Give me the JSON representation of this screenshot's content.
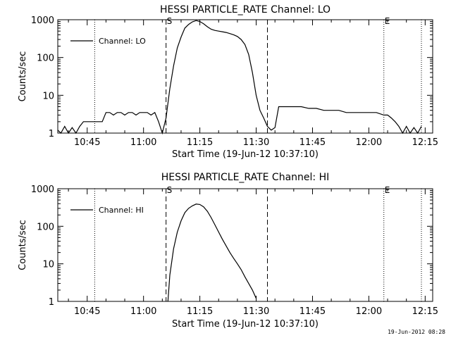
{
  "footer_timestamp": "19-Jun-2012 08:28",
  "chart_data": [
    {
      "type": "line",
      "title": "HESSI PARTICLE_RATE Channel: LO",
      "xlabel": "Start Time (19-Jun-12 10:37:10)",
      "ylabel": "Counts/sec",
      "yscale": "log",
      "ylim": [
        1,
        1000
      ],
      "yticks": [
        1,
        10,
        100,
        1000
      ],
      "ytick_labels": [
        "1",
        "10",
        "100",
        "1000"
      ],
      "xlim": [
        "10:37:10",
        "12:17"
      ],
      "xticks": [
        "10:45",
        "11:00",
        "11:15",
        "11:30",
        "11:45",
        "12:00",
        "12:15"
      ],
      "grid": false,
      "legend": {
        "position": "top-left",
        "entries": [
          "Channel: LO"
        ]
      },
      "markers": [
        {
          "time": "10:47",
          "style": "dotted"
        },
        {
          "time": "11:06",
          "style": "dashed",
          "label": "S"
        },
        {
          "time": "11:33",
          "style": "dashed"
        },
        {
          "time": "12:04",
          "style": "dotted",
          "label": "E"
        },
        {
          "time": "12:14",
          "style": "dotted"
        }
      ],
      "series": [
        {
          "name": "Channel: LO",
          "x": [
            "10:37:10",
            "10:38",
            "10:39",
            "10:40",
            "10:41",
            "10:42",
            "10:43",
            "10:44",
            "10:45",
            "10:46",
            "10:47",
            "10:48",
            "10:49",
            "10:50",
            "10:51",
            "10:52",
            "10:53",
            "10:54",
            "10:55",
            "10:56",
            "10:57",
            "10:58",
            "10:59",
            "11:00",
            "11:01",
            "11:02",
            "11:03",
            "11:04",
            "11:05",
            "11:06",
            "11:07",
            "11:08",
            "11:09",
            "11:10",
            "11:11",
            "11:12",
            "11:13",
            "11:14",
            "11:15",
            "11:16",
            "11:17",
            "11:18",
            "11:19",
            "11:20",
            "11:21",
            "11:22",
            "11:23",
            "11:24",
            "11:25",
            "11:26",
            "11:27",
            "11:28",
            "11:29",
            "11:30",
            "11:31",
            "11:32",
            "11:33",
            "11:34",
            "11:35",
            "11:36",
            "11:38",
            "11:40",
            "11:42",
            "11:44",
            "11:46",
            "11:48",
            "11:50",
            "11:52",
            "11:54",
            "11:56",
            "11:58",
            "12:00",
            "12:02",
            "12:04",
            "12:05",
            "12:06",
            "12:07",
            "12:08",
            "12:09",
            "12:10",
            "12:11",
            "12:12",
            "12:13",
            "12:14"
          ],
          "values": [
            1.2,
            1,
            1.5,
            1,
            1.4,
            1,
            1.5,
            2,
            2,
            2,
            2,
            2,
            2,
            3.5,
            3.5,
            3,
            3.5,
            3.5,
            3,
            3.5,
            3.5,
            3,
            3.5,
            3.5,
            3.5,
            3,
            3.5,
            2,
            1,
            2.5,
            15,
            60,
            180,
            350,
            600,
            750,
            880,
            950,
            900,
            780,
            650,
            560,
            520,
            500,
            480,
            460,
            430,
            400,
            360,
            300,
            220,
            120,
            40,
            10,
            4,
            2.5,
            1.5,
            1.2,
            1.4,
            5,
            5,
            5,
            5,
            4.5,
            4.5,
            4,
            4,
            4,
            3.5,
            3.5,
            3.5,
            3.5,
            3.5,
            3,
            3,
            2.5,
            2,
            1.5,
            1,
            1.5,
            1,
            1.4,
            1,
            1.5
          ]
        }
      ]
    },
    {
      "type": "line",
      "title": "HESSI PARTICLE_RATE Channel: HI",
      "xlabel": "Start Time (19-Jun-12 10:37:10)",
      "ylabel": "Counts/sec",
      "yscale": "log",
      "ylim": [
        1,
        1000
      ],
      "yticks": [
        1,
        10,
        100,
        1000
      ],
      "ytick_labels": [
        "1",
        "10",
        "100",
        "1000"
      ],
      "xlim": [
        "10:37:10",
        "12:17"
      ],
      "xticks": [
        "10:45",
        "11:00",
        "11:15",
        "11:30",
        "11:45",
        "12:00",
        "12:15"
      ],
      "grid": false,
      "legend": {
        "position": "top-left",
        "entries": [
          "Channel: HI"
        ]
      },
      "markers": [
        {
          "time": "10:47",
          "style": "dotted"
        },
        {
          "time": "11:06",
          "style": "dashed",
          "label": "S"
        },
        {
          "time": "11:33",
          "style": "dashed"
        },
        {
          "time": "12:04",
          "style": "dotted",
          "label": "E"
        },
        {
          "time": "12:14",
          "style": "dotted"
        }
      ],
      "series": [
        {
          "name": "Channel: HI",
          "x": [
            "11:06:30",
            "11:07",
            "11:08",
            "11:09",
            "11:10",
            "11:11",
            "11:12",
            "11:13",
            "11:14",
            "11:15",
            "11:16",
            "11:17",
            "11:18",
            "11:19",
            "11:20",
            "11:21",
            "11:22",
            "11:23",
            "11:24",
            "11:25",
            "11:26",
            "11:27",
            "11:28",
            "11:29",
            "11:30"
          ],
          "values": [
            1,
            5,
            25,
            70,
            140,
            230,
            300,
            350,
            390,
            380,
            330,
            250,
            170,
            110,
            70,
            45,
            30,
            20,
            14,
            10,
            7,
            4.5,
            3,
            2,
            1.2
          ]
        }
      ]
    }
  ]
}
